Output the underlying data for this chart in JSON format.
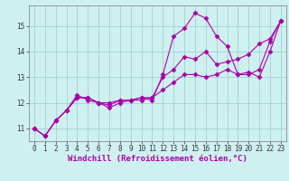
{
  "xlabel": "Windchill (Refroidissement éolien,°C)",
  "bg_color": "#cff0f0",
  "line_color": "#aa00aa",
  "grid_color": "#99cccc",
  "x": [
    0,
    1,
    2,
    3,
    4,
    5,
    6,
    7,
    8,
    9,
    10,
    11,
    12,
    13,
    14,
    15,
    16,
    17,
    18,
    19,
    20,
    21,
    22,
    23
  ],
  "line1": [
    11.0,
    10.7,
    11.3,
    11.7,
    12.2,
    12.2,
    12.0,
    11.8,
    12.0,
    12.1,
    12.2,
    12.1,
    13.1,
    14.6,
    14.9,
    15.5,
    15.3,
    14.6,
    14.2,
    13.1,
    13.2,
    13.0,
    14.0,
    15.2
  ],
  "line2": [
    11.0,
    10.7,
    11.3,
    11.7,
    12.3,
    12.1,
    12.0,
    12.0,
    12.1,
    12.1,
    12.1,
    12.2,
    12.5,
    12.8,
    13.1,
    13.1,
    13.0,
    13.1,
    13.3,
    13.1,
    13.1,
    13.3,
    14.4,
    15.2
  ],
  "line3": [
    11.0,
    10.7,
    11.3,
    11.7,
    12.2,
    12.2,
    12.0,
    11.9,
    12.1,
    12.1,
    12.2,
    12.2,
    13.0,
    13.3,
    13.8,
    13.7,
    14.0,
    13.5,
    13.6,
    13.7,
    13.9,
    14.3,
    14.5,
    15.2
  ],
  "ylim": [
    10.5,
    15.8
  ],
  "xlim": [
    -0.5,
    23.5
  ],
  "yticks": [
    11,
    12,
    13,
    14,
    15
  ],
  "xticks": [
    0,
    1,
    2,
    3,
    4,
    5,
    6,
    7,
    8,
    9,
    10,
    11,
    12,
    13,
    14,
    15,
    16,
    17,
    18,
    19,
    20,
    21,
    22,
    23
  ],
  "marker": "D",
  "markersize": 2.5,
  "linewidth": 0.8,
  "xlabel_fontsize": 6.5,
  "tick_fontsize": 5.5
}
